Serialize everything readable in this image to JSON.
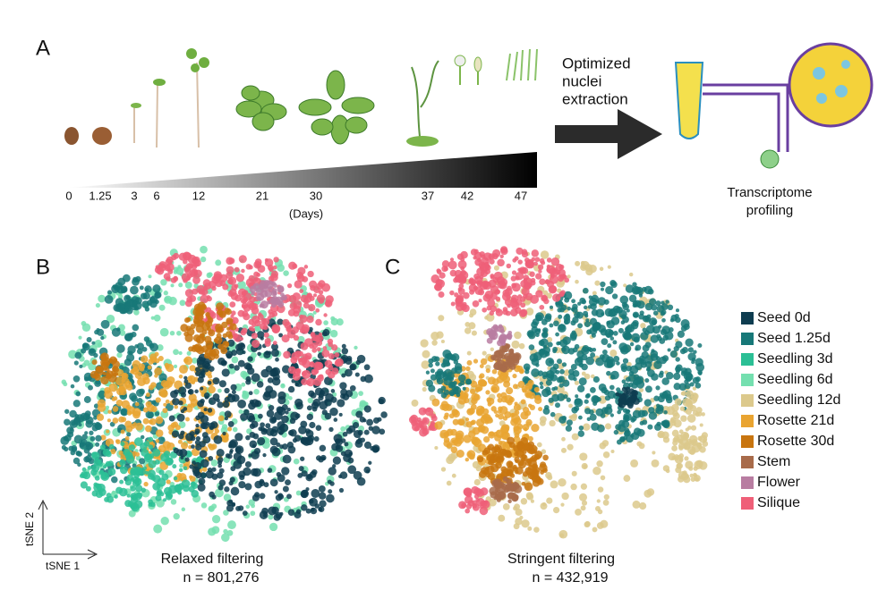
{
  "panels": {
    "a": "A",
    "b": "B",
    "c": "C"
  },
  "timeline": {
    "ticks": [
      "0",
      "1.25",
      "3",
      "6",
      "12",
      "21",
      "30",
      "37",
      "42",
      "47"
    ],
    "unit": "(Days)"
  },
  "process": {
    "step": [
      "Optimized",
      "nuclei",
      "extraction"
    ],
    "result": [
      "Transcriptome",
      "profiling"
    ]
  },
  "legend": [
    {
      "label": "Seed 0d",
      "color": "#0e3d50"
    },
    {
      "label": "Seed 1.25d",
      "color": "#177878"
    },
    {
      "label": "Seedling 3d",
      "color": "#2bbf95"
    },
    {
      "label": "Seedling 6d",
      "color": "#74dfaf"
    },
    {
      "label": "Seedling 12d",
      "color": "#dcc98c"
    },
    {
      "label": "Rosette 21d",
      "color": "#e9a431"
    },
    {
      "label": "Rosette 30d",
      "color": "#c8750f"
    },
    {
      "label": "Stem",
      "color": "#a86b4a"
    },
    {
      "label": "Flower",
      "color": "#b87da1"
    },
    {
      "label": "Silique",
      "color": "#ef5f78"
    }
  ],
  "plots": [
    {
      "title": "Relaxed filtering",
      "count": "n = 801,276"
    },
    {
      "title": "Stringent filtering",
      "count": "n = 432,919"
    }
  ],
  "axes": {
    "y": "tSNE 2",
    "x": "tSNE 1"
  }
}
